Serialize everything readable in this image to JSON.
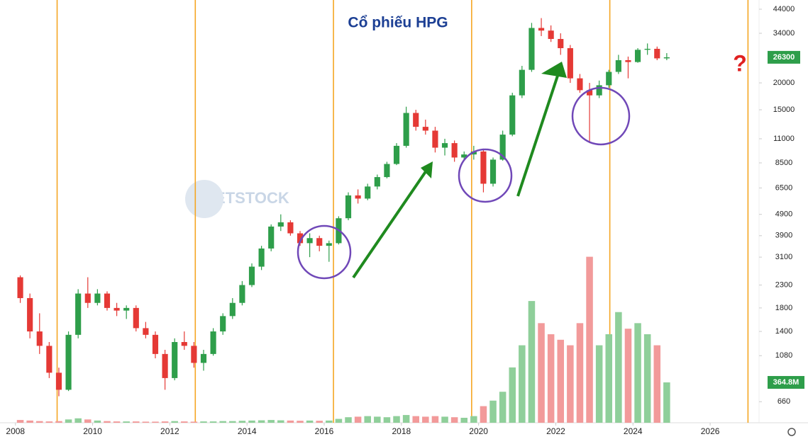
{
  "chart_data": {
    "type": "candlestick",
    "title": "Cổ phiếu HPG",
    "watermark": "VIETSTOCK",
    "annotation": "?",
    "log_scale": true,
    "grid": false,
    "up_color": "#2e9e4a",
    "down_color": "#e53935",
    "volume_up_color": "#8fcf9a",
    "volume_down_color": "#f29a9a",
    "vline_color": "#f5a623",
    "x": [
      2008.125,
      2008.375,
      2008.625,
      2008.875,
      2009.125,
      2009.375,
      2009.625,
      2009.875,
      2010.125,
      2010.375,
      2010.625,
      2010.875,
      2011.125,
      2011.375,
      2011.625,
      2011.875,
      2012.125,
      2012.375,
      2012.625,
      2012.875,
      2013.125,
      2013.375,
      2013.625,
      2013.875,
      2014.125,
      2014.375,
      2014.625,
      2014.875,
      2015.125,
      2015.375,
      2015.625,
      2015.875,
      2016.125,
      2016.375,
      2016.625,
      2016.875,
      2017.125,
      2017.375,
      2017.625,
      2017.875,
      2018.125,
      2018.375,
      2018.625,
      2018.875,
      2019.125,
      2019.375,
      2019.625,
      2019.875,
      2020.125,
      2020.375,
      2020.625,
      2020.875,
      2021.125,
      2021.375,
      2021.625,
      2021.875,
      2022.125,
      2022.375,
      2022.625,
      2022.875,
      2023.125,
      2023.375,
      2023.625,
      2023.875,
      2024.125,
      2024.375,
      2024.625,
      2024.875
    ],
    "open": [
      2500,
      2000,
      1400,
      1200,
      900,
      750,
      1350,
      2100,
      1900,
      2100,
      1800,
      1750,
      1800,
      1450,
      1350,
      1100,
      850,
      1250,
      1200,
      1000,
      1100,
      1400,
      1650,
      1900,
      2300,
      2800,
      3400,
      4300,
      4500,
      4000,
      3600,
      3800,
      3500,
      3600,
      4700,
      6000,
      5800,
      6600,
      7300,
      8400,
      10200,
      14500,
      12500,
      12000,
      10000,
      10500,
      9000,
      9300,
      9600,
      6800,
      8800,
      11500,
      17500,
      23000,
      36000,
      35000,
      32000,
      29000,
      21000,
      18500,
      17500,
      19500,
      22500,
      25500,
      25000,
      28500,
      28800,
      26000
    ],
    "high": [
      2550,
      2100,
      1700,
      1250,
      950,
      1400,
      2200,
      2500,
      2200,
      2150,
      1900,
      1850,
      1850,
      1550,
      1400,
      1150,
      1300,
      1400,
      1250,
      1150,
      1450,
      1700,
      2000,
      2400,
      2900,
      3500,
      4400,
      4900,
      4600,
      4100,
      4000,
      3900,
      3700,
      4800,
      6200,
      6400,
      6800,
      7500,
      8600,
      10500,
      15500,
      15000,
      13500,
      12500,
      11000,
      10800,
      9600,
      10200,
      9900,
      9000,
      12000,
      18000,
      24000,
      38000,
      40000,
      37000,
      34000,
      30000,
      22000,
      20000,
      20500,
      23000,
      27000,
      26500,
      29000,
      30500,
      29500,
      27500
    ],
    "low": [
      1900,
      1300,
      1100,
      850,
      700,
      740,
      1300,
      1800,
      1850,
      1750,
      1650,
      1600,
      1400,
      1300,
      1050,
      750,
      830,
      1150,
      950,
      920,
      1080,
      1350,
      1600,
      1850,
      2250,
      2700,
      3300,
      4100,
      3900,
      3500,
      3100,
      3300,
      2950,
      3550,
      4600,
      5500,
      5700,
      6400,
      7200,
      8300,
      10000,
      12000,
      11500,
      9500,
      9200,
      8600,
      8700,
      8800,
      6200,
      6600,
      8700,
      11300,
      17000,
      22500,
      33000,
      31000,
      27000,
      20000,
      18000,
      10500,
      17000,
      19000,
      22000,
      21000,
      24800,
      27000,
      25500,
      25500
    ],
    "close": [
      2000,
      1400,
      1200,
      900,
      750,
      1350,
      2100,
      1900,
      2100,
      1800,
      1750,
      1800,
      1450,
      1350,
      1100,
      850,
      1250,
      1200,
      1000,
      1100,
      1400,
      1650,
      1900,
      2300,
      2800,
      3400,
      4300,
      4500,
      4000,
      3600,
      3800,
      3500,
      3600,
      4700,
      6000,
      5800,
      6600,
      7300,
      8400,
      10200,
      14500,
      12500,
      12000,
      10000,
      10500,
      9000,
      9300,
      9600,
      6800,
      8800,
      11500,
      17500,
      23000,
      36000,
      35000,
      32000,
      29000,
      21000,
      18500,
      17500,
      19500,
      22500,
      25500,
      25000,
      28500,
      28800,
      26000,
      26300
    ],
    "volume": [
      25,
      20,
      15,
      12,
      15,
      30,
      40,
      30,
      20,
      15,
      12,
      12,
      12,
      10,
      10,
      12,
      15,
      12,
      10,
      12,
      12,
      15,
      15,
      18,
      20,
      22,
      25,
      22,
      20,
      18,
      20,
      18,
      20,
      35,
      50,
      55,
      60,
      55,
      50,
      60,
      70,
      60,
      55,
      60,
      55,
      50,
      45,
      60,
      150,
      200,
      280,
      500,
      700,
      1100,
      900,
      800,
      750,
      700,
      900,
      1500,
      700,
      800,
      1000,
      850,
      900,
      800,
      700,
      364.8
    ],
    "volume_label": "364.8M",
    "vlines": [
      2009.08,
      2012.66,
      2016.24,
      2019.82,
      2023.4,
      2026.98
    ],
    "xlim": [
      2007.6,
      2027.23
    ],
    "xticks": [
      2008,
      2010,
      2012,
      2014,
      2016,
      2018,
      2020,
      2022,
      2024,
      2026
    ],
    "ylim": [
      527,
      48550
    ],
    "yticks": [
      660,
      1080,
      1400,
      1800,
      2300,
      3100,
      3900,
      4900,
      6500,
      8500,
      11000,
      15000,
      20000,
      34000,
      44000
    ],
    "y2lim": [
      0,
      3820
    ]
  }
}
